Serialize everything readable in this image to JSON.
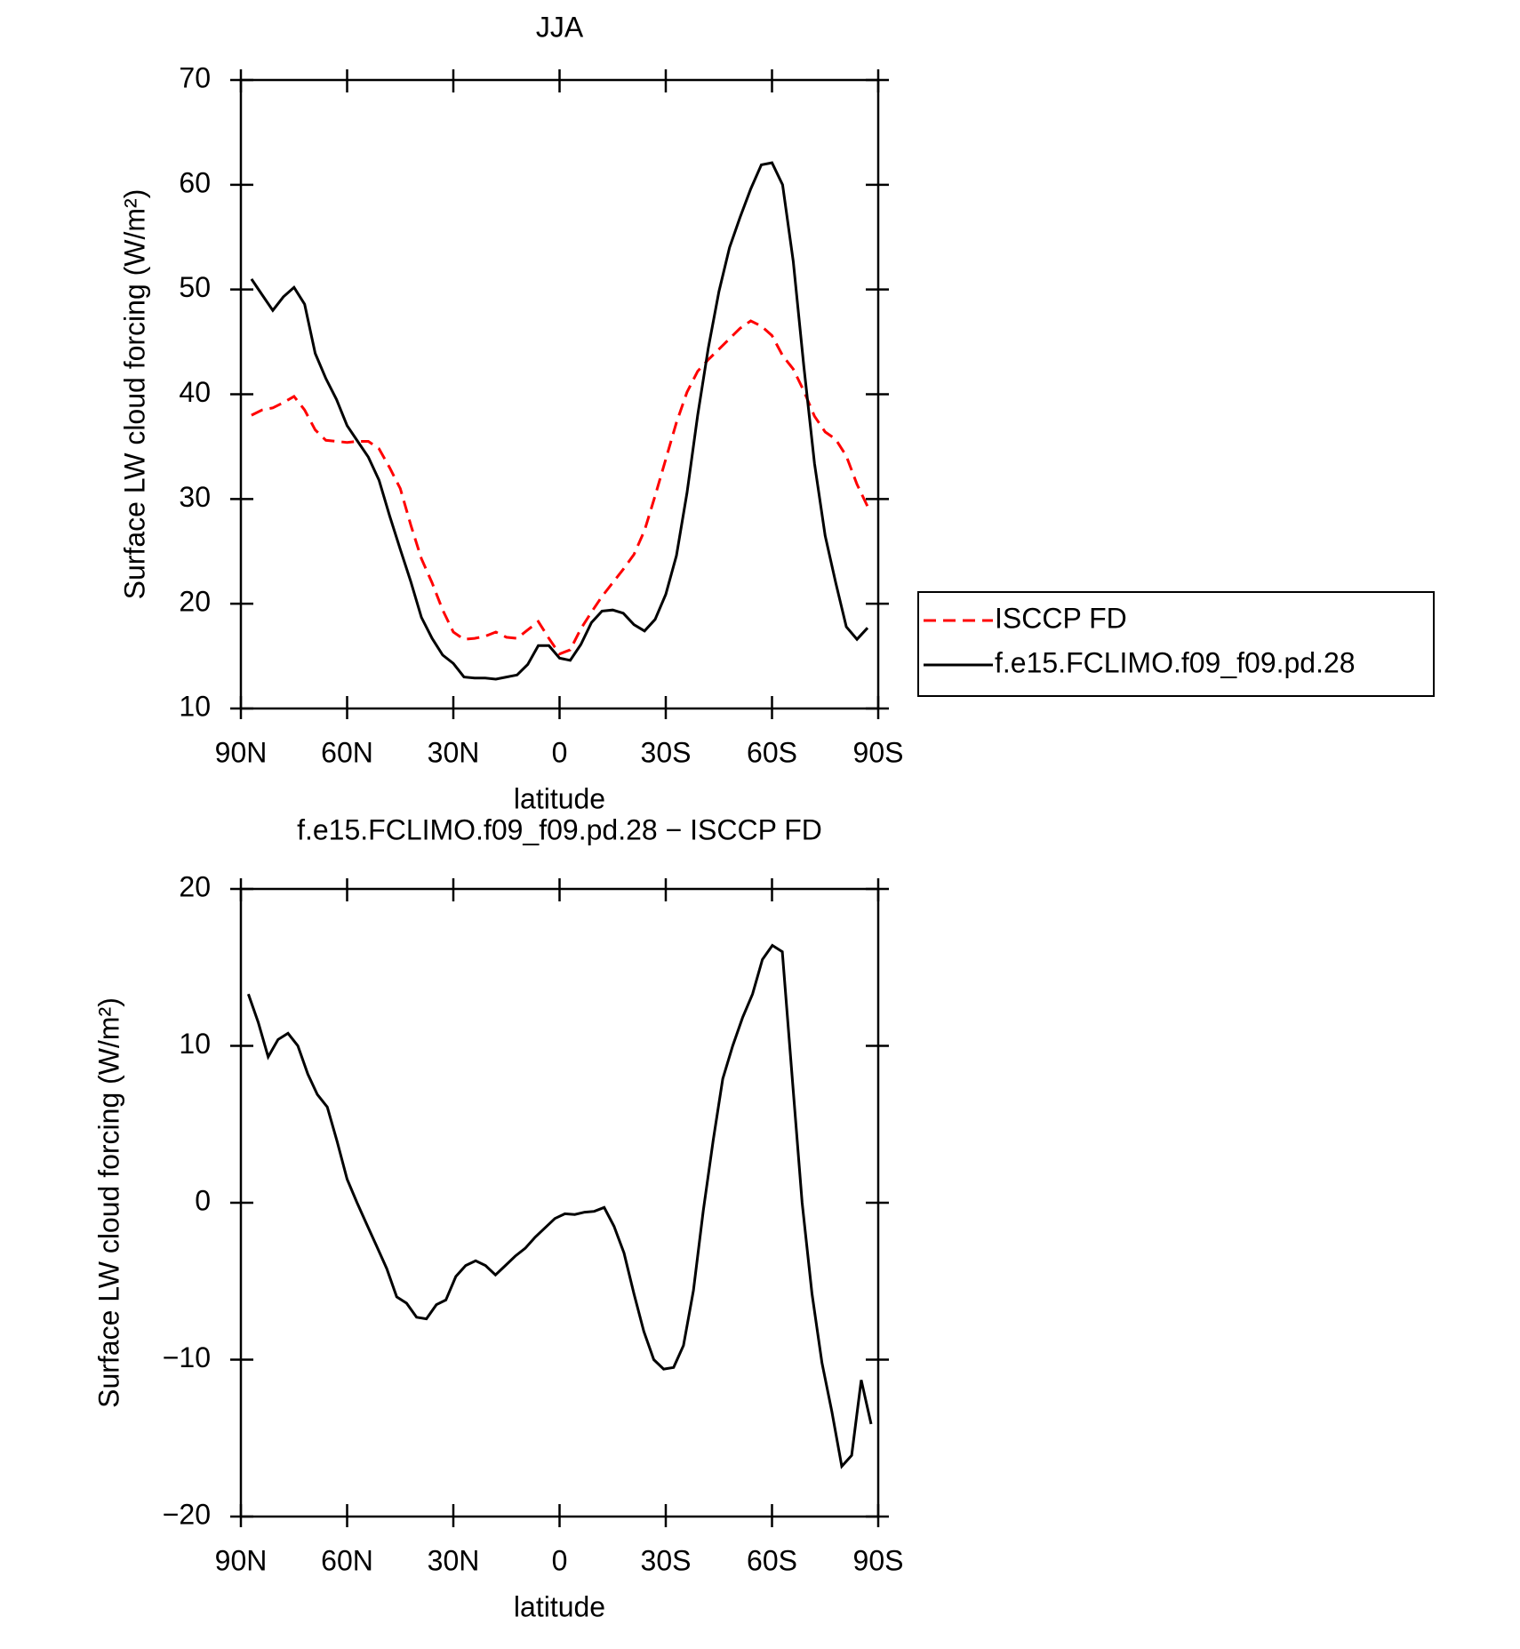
{
  "chart_data": [
    {
      "type": "line",
      "title": "JJA",
      "xlabel": "latitude",
      "ylabel": "Surface LW cloud forcing (W/m²)",
      "xlim": [
        90,
        -90
      ],
      "xticks": [
        {
          "value": 90,
          "label": "90N"
        },
        {
          "value": 60,
          "label": "60N"
        },
        {
          "value": 30,
          "label": "30N"
        },
        0,
        {
          "value": -30,
          "label": "30S"
        },
        {
          "value": -60,
          "label": "60S"
        },
        {
          "value": -90,
          "label": "90S"
        }
      ],
      "ylim": [
        10,
        70
      ],
      "yticks": [
        10,
        20,
        30,
        40,
        50,
        60,
        70
      ],
      "legend": "right",
      "x": [
        87,
        84,
        81,
        78,
        75,
        72,
        69,
        66,
        63,
        60,
        57,
        54,
        51,
        48,
        45,
        42,
        39,
        36,
        33,
        30,
        27,
        24,
        21,
        18,
        15,
        12,
        9,
        6,
        3,
        0,
        -3,
        -6,
        -9,
        -12,
        -15,
        -18,
        -21,
        -24,
        -27,
        -30,
        -33,
        -36,
        -39,
        -42,
        -45,
        -48,
        -51,
        -54,
        -57,
        -60,
        -63,
        -66,
        -69,
        -72,
        -75,
        -78,
        -81,
        -84,
        -87
      ],
      "series": [
        {
          "name": "ISCCP FD",
          "color": "#ff0000",
          "style": "dashed",
          "values": [
            38,
            38.5,
            38.7,
            39.2,
            39.8,
            38.5,
            36.6,
            35.6,
            35.5,
            35.4,
            35.5,
            35.5,
            34.8,
            33,
            31,
            27.5,
            24.3,
            22,
            19.4,
            17.3,
            16.6,
            16.7,
            16.9,
            17.3,
            16.8,
            16.7,
            17.5,
            18.3,
            16.7,
            15.2,
            15.6,
            17.6,
            19.2,
            20.7,
            22,
            23.3,
            24.7,
            27,
            30.3,
            33.8,
            37.3,
            40.2,
            42.2,
            43.3,
            44.3,
            45.3,
            46.3,
            47,
            46.5,
            45.6,
            43.7,
            42.4,
            40.3,
            37.9,
            36.4,
            35.7,
            34.1,
            31.4,
            29.3
          ]
        },
        {
          "name": "f.e15.FCLIMO.f09_f09.pd.28",
          "color": "#000000",
          "style": "solid",
          "values": [
            51,
            49.5,
            48,
            49.3,
            50.2,
            48.6,
            43.9,
            41.5,
            39.5,
            37,
            35.5,
            34,
            31.8,
            28.4,
            25.2,
            22.1,
            18.7,
            16.7,
            15.1,
            14.3,
            13,
            12.9,
            12.9,
            12.8,
            13,
            13.2,
            14.2,
            16,
            16,
            14.8,
            14.6,
            16.1,
            18.2,
            19.3,
            19.4,
            19.1,
            18,
            17.4,
            18.5,
            20.9,
            24.6,
            30.6,
            38,
            44.4,
            49.8,
            54,
            56.9,
            59.6,
            61.9,
            62.1,
            60,
            52.7,
            42.6,
            33.4,
            26.5,
            22,
            17.8,
            16.6,
            17.7
          ]
        }
      ]
    },
    {
      "type": "line",
      "title": "f.e15.FCLIMO.f09_f09.pd.28 − ISCCP FD",
      "xlabel": "latitude",
      "ylabel": "Surface LW cloud forcing (W/m²)",
      "xlim": [
        90,
        -90
      ],
      "xticks": [
        {
          "value": 90,
          "label": "90N"
        },
        {
          "value": 60,
          "label": "60N"
        },
        {
          "value": 30,
          "label": "30N"
        },
        0,
        {
          "value": -30,
          "label": "30S"
        },
        {
          "value": -60,
          "label": "60S"
        },
        {
          "value": -90,
          "label": "90S"
        }
      ],
      "ylim": [
        -20,
        20
      ],
      "yticks": [
        {
          "value": -20,
          "label": "−20"
        },
        {
          "value": -10,
          "label": "−10"
        },
        0,
        10,
        20
      ],
      "x": [
        87.9,
        85.1,
        82.3,
        79.5,
        76.7,
        73.9,
        71.1,
        68.4,
        65.6,
        62.8,
        60.0,
        57.2,
        54.4,
        51.6,
        48.8,
        46.0,
        43.2,
        40.4,
        37.6,
        34.8,
        32.1,
        29.3,
        26.5,
        23.7,
        20.9,
        18.1,
        15.3,
        12.5,
        9.7,
        6.9,
        4.1,
        1.3,
        -1.5,
        -4.3,
        -7.1,
        -9.8,
        -12.6,
        -15.4,
        -18.2,
        -21.0,
        -23.8,
        -26.6,
        -29.4,
        -32.2,
        -35.0,
        -37.8,
        -40.6,
        -43.4,
        -46.1,
        -48.9,
        -51.7,
        -54.5,
        -57.3,
        -60.1,
        -62.9,
        -65.7,
        -68.5,
        -71.3,
        -74.1,
        -76.9,
        -79.7,
        -82.5,
        -85.2,
        -88.0
      ],
      "series": [
        {
          "color": "#000000",
          "style": "solid",
          "values": [
            13.3,
            11.5,
            9.3,
            10.4,
            10.8,
            10,
            8.2,
            6.9,
            6.1,
            3.9,
            1.5,
            0,
            -1.4,
            -2.8,
            -4.2,
            -6,
            -6.4,
            -7.3,
            -7.4,
            -6.5,
            -6.2,
            -4.7,
            -4,
            -3.7,
            -4,
            -4.6,
            -4,
            -3.4,
            -2.9,
            -2.2,
            -1.6,
            -1,
            -0.7,
            -0.75,
            -0.6,
            -0.55,
            -0.3,
            -1.5,
            -3.2,
            -5.8,
            -8.2,
            -10,
            -10.6,
            -10.5,
            -9.1,
            -5.6,
            -0.5,
            4,
            7.9,
            10,
            11.8,
            13.3,
            15.5,
            16.4,
            16,
            8,
            0,
            -5.8,
            -10.2,
            -13.3,
            -16.8,
            -16.1,
            -11.3,
            -14.1
          ]
        }
      ]
    }
  ]
}
